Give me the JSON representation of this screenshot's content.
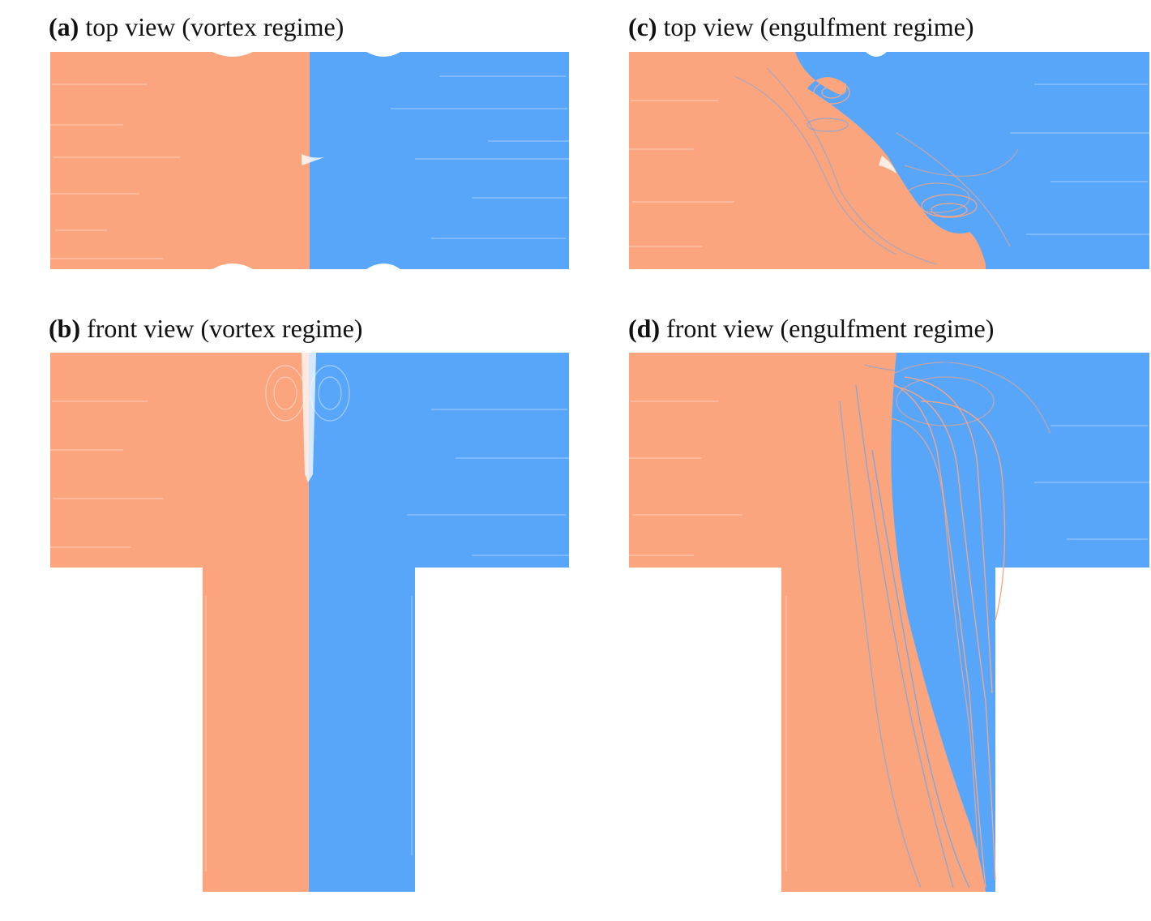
{
  "colors": {
    "orange": "#fba57f",
    "blue": "#58a6fa",
    "background": "#ffffff"
  },
  "panels": [
    {
      "id": "a",
      "letter": "(a)",
      "title": "top view (vortex regime)"
    },
    {
      "id": "b",
      "letter": "(b)",
      "title": "front view (vortex regime)"
    },
    {
      "id": "c",
      "letter": "(c)",
      "title": "top view (engulfment regime)"
    },
    {
      "id": "d",
      "letter": "(d)",
      "title": "front view (engulfment regime)"
    }
  ]
}
